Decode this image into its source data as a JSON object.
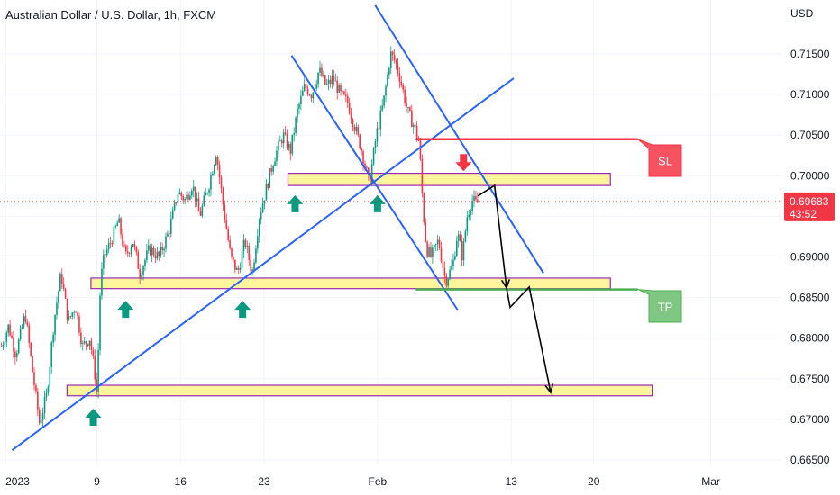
{
  "chart_data": {
    "type": "candlestick",
    "title": "Australian Dollar / U.S. Dollar, 1h, FXCM",
    "currency_label": "USD",
    "y_ticks": [
      0.715,
      0.71,
      0.705,
      0.7,
      0.695,
      0.69,
      0.685,
      0.68,
      0.675,
      0.67,
      0.665
    ],
    "y_tick_labels": [
      "0.71500",
      "0.71000",
      "0.70500",
      "0.70000",
      "0.69500",
      "0.69000",
      "0.68500",
      "0.68000",
      "0.67500",
      "0.67000",
      "0.66500"
    ],
    "ylim": [
      0.665,
      0.715
    ],
    "x_tick_labels": [
      "2023",
      "9",
      "16",
      "23",
      "Feb",
      "13",
      "20",
      "Mar"
    ],
    "last_price": "0.69683",
    "countdown": "43:52",
    "last_price_value": 0.69683,
    "price_path": [
      [
        0.0,
        0.679
      ],
      [
        0.6,
        0.6815
      ],
      [
        1.2,
        0.678
      ],
      [
        2.0,
        0.683
      ],
      [
        2.6,
        0.676
      ],
      [
        3.2,
        0.6695
      ],
      [
        3.8,
        0.673
      ],
      [
        4.4,
        0.682
      ],
      [
        5.0,
        0.688
      ],
      [
        5.6,
        0.682
      ],
      [
        6.2,
        0.684
      ],
      [
        6.8,
        0.679
      ],
      [
        7.4,
        0.68
      ],
      [
        7.8,
        0.676
      ],
      [
        8.0,
        0.673
      ],
      [
        8.3,
        0.687
      ],
      [
        8.6,
        0.69
      ],
      [
        9.2,
        0.692
      ],
      [
        9.8,
        0.6945
      ],
      [
        10.4,
        0.69
      ],
      [
        11.0,
        0.692
      ],
      [
        11.6,
        0.688
      ],
      [
        12.4,
        0.691
      ],
      [
        13.2,
        0.69
      ],
      [
        14.0,
        0.693
      ],
      [
        14.8,
        0.698
      ],
      [
        15.4,
        0.697
      ],
      [
        16.0,
        0.699
      ],
      [
        16.6,
        0.695
      ],
      [
        17.4,
        0.699
      ],
      [
        18.0,
        0.703
      ],
      [
        18.6,
        0.696
      ],
      [
        19.2,
        0.69
      ],
      [
        19.8,
        0.688
      ],
      [
        20.4,
        0.692
      ],
      [
        21.0,
        0.688
      ],
      [
        21.6,
        0.695
      ],
      [
        22.2,
        0.6985
      ],
      [
        22.8,
        0.702
      ],
      [
        23.6,
        0.705
      ],
      [
        24.2,
        0.703
      ],
      [
        24.8,
        0.708
      ],
      [
        25.4,
        0.711
      ],
      [
        26.0,
        0.71
      ],
      [
        26.6,
        0.713
      ],
      [
        27.2,
        0.711
      ],
      [
        27.8,
        0.712
      ],
      [
        28.4,
        0.71
      ],
      [
        29.0,
        0.709
      ],
      [
        29.6,
        0.706
      ],
      [
        30.2,
        0.703
      ],
      [
        30.8,
        0.699
      ],
      [
        31.4,
        0.705
      ],
      [
        32.0,
        0.709
      ],
      [
        32.6,
        0.715
      ],
      [
        33.0,
        0.714
      ],
      [
        33.4,
        0.712
      ],
      [
        34.0,
        0.708
      ],
      [
        34.6,
        0.706
      ],
      [
        35.0,
        0.704
      ],
      [
        35.3,
        0.696
      ],
      [
        35.6,
        0.691
      ],
      [
        36.0,
        0.69
      ],
      [
        36.6,
        0.692
      ],
      [
        37.2,
        0.687
      ],
      [
        37.8,
        0.689
      ],
      [
        38.2,
        0.693
      ],
      [
        38.6,
        0.69
      ],
      [
        39.0,
        0.695
      ],
      [
        39.4,
        0.697
      ],
      [
        39.8,
        0.6965
      ],
      [
        40.0,
        0.69683
      ]
    ],
    "horizontal_zones": [
      {
        "from_x": 24.0,
        "to_x": 51.0,
        "y_low": 0.6988,
        "y_high": 0.7003
      },
      {
        "from_x": 7.5,
        "to_x": 51.0,
        "y_low": 0.6861,
        "y_high": 0.6874
      },
      {
        "from_x": 5.5,
        "to_x": 54.5,
        "y_low": 0.6729,
        "y_high": 0.6742
      }
    ],
    "trend_lines": [
      {
        "from": [
          0.9,
          0.6662
        ],
        "to": [
          42.9,
          0.712
        ]
      },
      {
        "from": [
          24.3,
          0.7148
        ],
        "to": [
          38.2,
          0.6835
        ]
      },
      {
        "from": [
          31.3,
          0.721
        ],
        "to": [
          45.4,
          0.688
        ]
      }
    ],
    "levels": [
      {
        "label": "SL",
        "value": 0.7045,
        "from_x": 34.7,
        "to_x": 53.3,
        "color": "#f23645",
        "box": "#f7525f"
      },
      {
        "label": "TP",
        "value": 0.686,
        "from_x": 34.7,
        "to_x": 53.3,
        "color": "#4caf50",
        "box": "#81c784"
      }
    ],
    "projection_path": [
      [
        39.9,
        0.6975
      ],
      [
        41.3,
        0.6988
      ],
      [
        42.3,
        0.6862
      ],
      [
        42.6,
        0.6838
      ],
      [
        44.2,
        0.6863
      ],
      [
        46.0,
        0.6733
      ]
    ],
    "up_markers": [
      [
        24.6,
        0.6985
      ],
      [
        31.5,
        0.6985
      ],
      [
        10.4,
        0.6855
      ],
      [
        20.2,
        0.6855
      ],
      [
        7.7,
        0.6722
      ]
    ],
    "down_marker": [
      38.7,
      0.7
    ],
    "colors": {
      "up": "#089981",
      "down": "#f23645",
      "line": "#2962ff",
      "zone_fill": "#fff59d",
      "zone_border": "#9c27b0"
    }
  }
}
